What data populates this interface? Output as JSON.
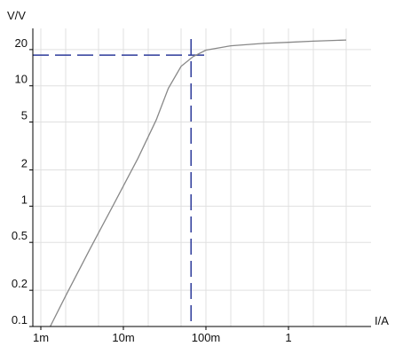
{
  "chart_data": {
    "type": "line",
    "ylabel": "V/V",
    "xlabel": "I/A",
    "xscale": "log",
    "yscale": "log",
    "xlim": [
      0.0008,
      10
    ],
    "ylim": [
      0.1,
      30
    ],
    "grid": true,
    "x_ticks": [
      {
        "value": 0.001,
        "label": "1m"
      },
      {
        "value": 0.01,
        "label": "10m"
      },
      {
        "value": 0.1,
        "label": "100m"
      },
      {
        "value": 1,
        "label": "1"
      }
    ],
    "y_ticks": [
      {
        "value": 0.1,
        "label": "0.1"
      },
      {
        "value": 0.2,
        "label": "0.2"
      },
      {
        "value": 0.5,
        "label": "0.5"
      },
      {
        "value": 1,
        "label": "1"
      },
      {
        "value": 2,
        "label": "2"
      },
      {
        "value": 5,
        "label": "5"
      },
      {
        "value": 10,
        "label": "10"
      },
      {
        "value": 20,
        "label": "20"
      }
    ],
    "series": [
      {
        "color": "#888888",
        "x": [
          0.0013,
          0.002,
          0.004,
          0.008,
          0.015,
          0.025,
          0.035,
          0.05,
          0.07,
          0.1,
          0.2,
          0.5,
          1,
          2,
          5
        ],
        "y": [
          0.1,
          0.18,
          0.45,
          1.1,
          2.5,
          5.2,
          9.5,
          14.5,
          17.5,
          19.8,
          21.5,
          22.5,
          23.0,
          23.5,
          24.0
        ]
      }
    ],
    "marker": {
      "x": 0.066,
      "y": 18,
      "color": "#2c3a9a",
      "style": "dashed"
    },
    "colors": {
      "axis": "#000000",
      "grid": "#e0e0e0"
    }
  }
}
